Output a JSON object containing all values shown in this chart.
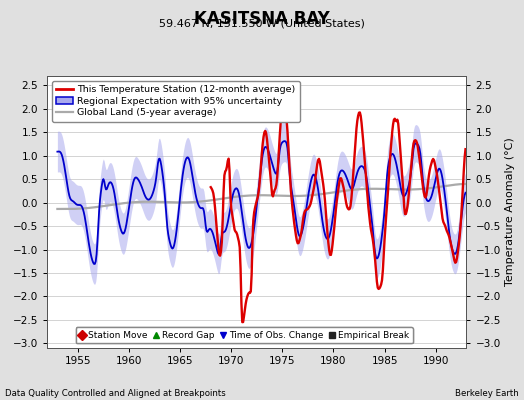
{
  "title": "KASITSNA BAY",
  "subtitle": "59.467 N, 151.550 W (United States)",
  "ylabel": "Temperature Anomaly (°C)",
  "xlabel_left": "Data Quality Controlled and Aligned at Breakpoints",
  "xlabel_right": "Berkeley Earth",
  "xlim": [
    1952,
    1993
  ],
  "ylim": [
    -3.1,
    2.7
  ],
  "yticks": [
    -3,
    -2.5,
    -2,
    -1.5,
    -1,
    -0.5,
    0,
    0.5,
    1,
    1.5,
    2,
    2.5
  ],
  "xticks": [
    1955,
    1960,
    1965,
    1970,
    1975,
    1980,
    1985,
    1990
  ],
  "bg_color": "#e0e0e0",
  "plot_bg_color": "#ffffff",
  "grid_color": "#cccccc",
  "red_line_color": "#dd0000",
  "blue_line_color": "#0000cc",
  "blue_fill_color": "#aaaaee",
  "gray_line_color": "#aaaaaa",
  "legend_items": [
    {
      "label": "This Temperature Station (12-month average)",
      "color": "#dd0000",
      "lw": 2.0
    },
    {
      "label": "Regional Expectation with 95% uncertainty",
      "color": "#0000cc",
      "lw": 1.5
    },
    {
      "label": "Global Land (5-year average)",
      "color": "#aaaaaa",
      "lw": 1.5
    }
  ],
  "marker_items": [
    {
      "label": "Station Move",
      "color": "#cc0000",
      "marker": "D",
      "ms": 5
    },
    {
      "label": "Record Gap",
      "color": "#008800",
      "marker": "^",
      "ms": 5
    },
    {
      "label": "Time of Obs. Change",
      "color": "#0000cc",
      "marker": "v",
      "ms": 5
    },
    {
      "label": "Empirical Break",
      "color": "#222222",
      "marker": "s",
      "ms": 4
    }
  ]
}
